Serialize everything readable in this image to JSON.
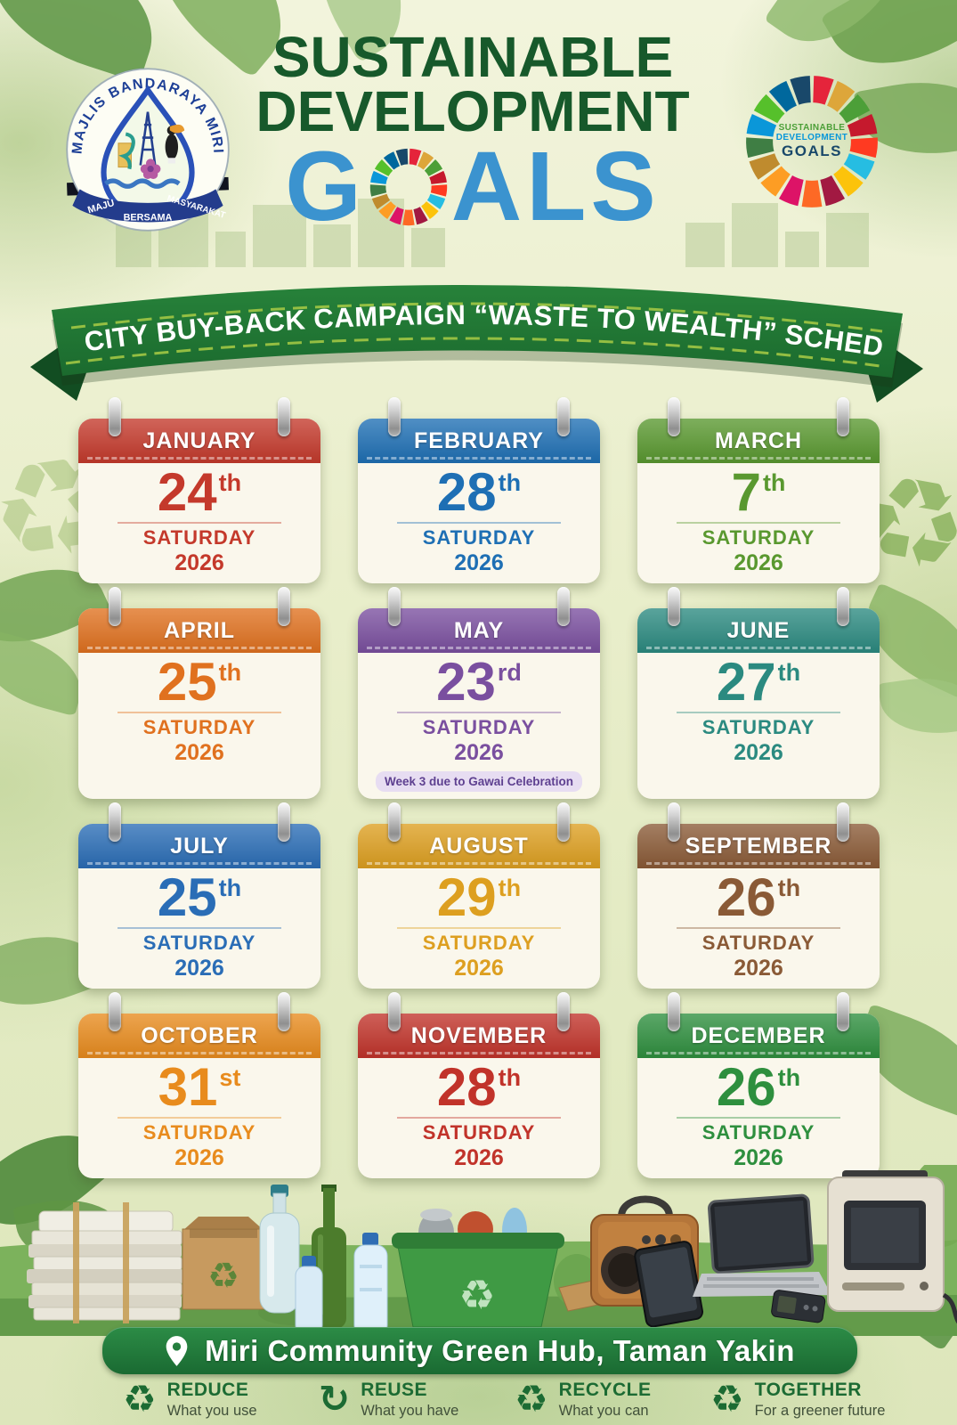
{
  "poster": {
    "title_line1": "SUSTAINABLE",
    "title_line2": "DEVELOPMENT",
    "goals_prefix": "G",
    "goals_suffix": "ALS",
    "banner": "MIRI CITY BUY-BACK CAMPAIGN “WASTE TO WEALTH” SCHEDULE"
  },
  "city_logo": {
    "ring_text": "MAJLIS BANDARAYA MIRI",
    "ribbon_left": "MAJU",
    "ribbon_center": "BERSAMA",
    "ribbon_right": "MASYARAKAT"
  },
  "sdg_logo": {
    "line1": "SUSTAINABLE",
    "line2": "DEVELOPMENT",
    "line3": "GOALS"
  },
  "months": [
    {
      "name": "JANUARY",
      "day": "24",
      "ordinal": "th",
      "weekday": "SATURDAY",
      "year": "2026",
      "color": "#c4392b",
      "note": ""
    },
    {
      "name": "FEBRUARY",
      "day": "28",
      "ordinal": "th",
      "weekday": "SATURDAY",
      "year": "2026",
      "color": "#1e6fb4",
      "note": ""
    },
    {
      "name": "MARCH",
      "day": "7",
      "ordinal": "th",
      "weekday": "SATURDAY",
      "year": "2026",
      "color": "#59982f",
      "note": ""
    },
    {
      "name": "APRIL",
      "day": "25",
      "ordinal": "th",
      "weekday": "SATURDAY",
      "year": "2026",
      "color": "#e0711f",
      "note": ""
    },
    {
      "name": "MAY",
      "day": "23",
      "ordinal": "rd",
      "weekday": "SATURDAY",
      "year": "2026",
      "color": "#7a4f9f",
      "note": "Week 3 due to Gawai Celebration"
    },
    {
      "name": "JUNE",
      "day": "27",
      "ordinal": "th",
      "weekday": "SATURDAY",
      "year": "2026",
      "color": "#2b8a80",
      "note": ""
    },
    {
      "name": "JULY",
      "day": "25",
      "ordinal": "th",
      "weekday": "SATURDAY",
      "year": "2026",
      "color": "#2a6db6",
      "note": ""
    },
    {
      "name": "AUGUST",
      "day": "29",
      "ordinal": "th",
      "weekday": "SATURDAY",
      "year": "2026",
      "color": "#dd9f20",
      "note": ""
    },
    {
      "name": "SEPTEMBER",
      "day": "26",
      "ordinal": "th",
      "weekday": "SATURDAY",
      "year": "2026",
      "color": "#8a5a36",
      "note": ""
    },
    {
      "name": "OCTOBER",
      "day": "31",
      "ordinal": "st",
      "weekday": "SATURDAY",
      "year": "2026",
      "color": "#e88b1d",
      "note": ""
    },
    {
      "name": "NOVEMBER",
      "day": "28",
      "ordinal": "th",
      "weekday": "SATURDAY",
      "year": "2026",
      "color": "#c1332a",
      "note": ""
    },
    {
      "name": "DECEMBER",
      "day": "26",
      "ordinal": "th",
      "weekday": "SATURDAY",
      "year": "2026",
      "color": "#2e8f3e",
      "note": ""
    }
  ],
  "location": {
    "label": "Miri Community Green Hub, Taman Yakin"
  },
  "legend": [
    {
      "icon": "♻",
      "title": "REDUCE",
      "subtitle": "What you use"
    },
    {
      "icon": "↻",
      "title": "REUSE",
      "subtitle": "What you have"
    },
    {
      "icon": "♻",
      "title": "RECYCLE",
      "subtitle": "What you can"
    },
    {
      "icon": "♻",
      "title": "TOGETHER",
      "subtitle": "For a greener future"
    }
  ],
  "colors": {
    "theme": {
      "title_green": "#17592b",
      "title_blue": "#3b93cf",
      "ribbon_green": "#237a36",
      "ribbon_dash": "#a9cb45",
      "location_green": "#1e6f33",
      "footer_green": "#1c6b33",
      "card_bg": "#faf7ec",
      "note_bg": "#e7ddf2",
      "note_text": "#5e4090",
      "ground_green": "#7cb25c"
    },
    "sdg_wheel": [
      "#E5243B",
      "#DDA63A",
      "#4C9F38",
      "#C5192D",
      "#FF3A21",
      "#26BDE2",
      "#FCC30B",
      "#A21942",
      "#FD6925",
      "#DD1367",
      "#FD9D24",
      "#BF8B2E",
      "#3F7E44",
      "#0A97D9",
      "#56C02B",
      "#00689D",
      "#19486A"
    ]
  }
}
